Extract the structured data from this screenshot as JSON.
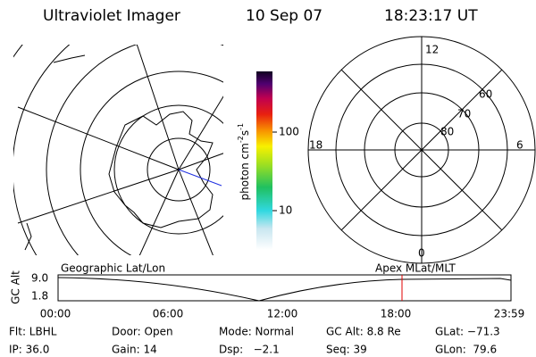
{
  "header": {
    "title": "Ultraviolet Imager",
    "date": "10 Sep 07",
    "time": "18:23:17 UT"
  },
  "colorbar": {
    "label": [
      "photon cm",
      "-2",
      "s",
      "-1"
    ],
    "ticks": [
      "100",
      "10"
    ]
  },
  "polar": {
    "mlt_labels": [
      "12",
      "18",
      "6",
      "0"
    ],
    "lat_labels": [
      "60",
      "70",
      "80"
    ]
  },
  "timeline": {
    "left_title": "Geographic Lat/Lon",
    "right_title": "Apex MLat/MLT",
    "y_label": "GC Alt",
    "y_ticks": [
      "9.0",
      "1.8"
    ],
    "x_ticks": [
      "00:00",
      "06:00",
      "12:00",
      "18:00",
      "23:59"
    ]
  },
  "footer": {
    "rows": [
      [
        "Flt: LBHL",
        "Door: Open",
        "Mode: Normal",
        "GC Alt: 8.8 Re",
        "GLat: −71.3"
      ],
      [
        "IP: 36.0",
        "Gain: 14",
        "Dsp:   −2.1",
        "Seq: 39",
        "GLon:  79.6"
      ]
    ]
  }
}
